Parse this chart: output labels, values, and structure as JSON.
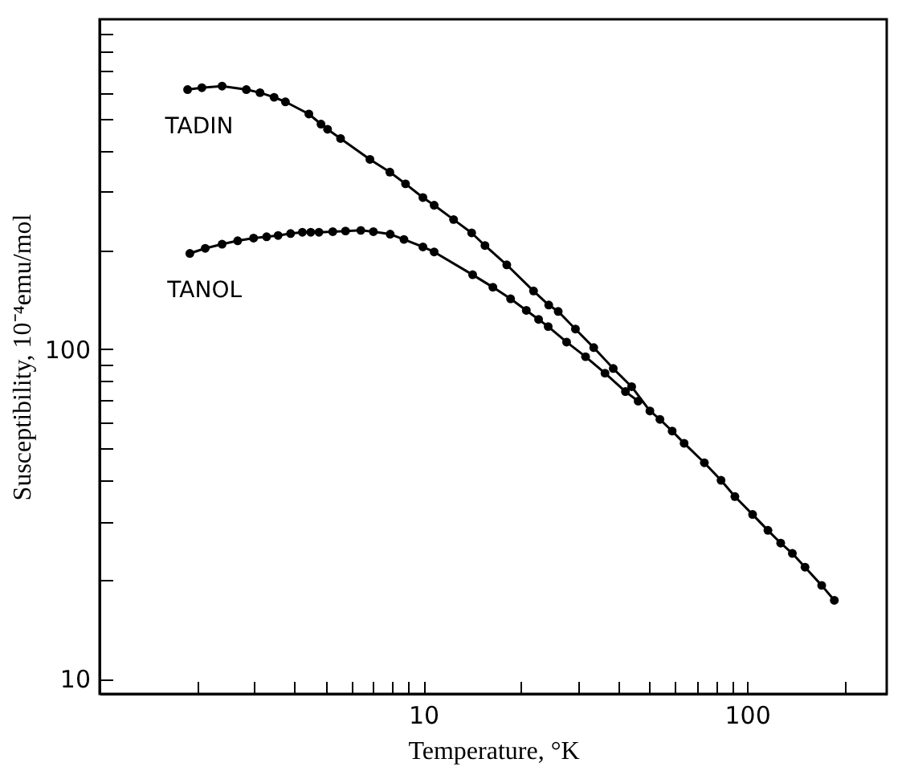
{
  "chart_data": {
    "type": "line",
    "xlabel": "Temperature, °K",
    "ylabel": "Susceptibility, 10⁻⁴emu/mol",
    "log": "xy",
    "grid": false,
    "marker": "circle",
    "line_style": "solid",
    "xlim": [
      1,
      270
    ],
    "xticks": [
      {
        "value": 2,
        "label": null
      },
      {
        "value": 3,
        "label": null
      },
      {
        "value": 4,
        "label": null
      },
      {
        "value": 5,
        "label": null
      },
      {
        "value": 6,
        "label": null
      },
      {
        "value": 7,
        "label": null
      },
      {
        "value": 8,
        "label": null
      },
      {
        "value": 9,
        "label": null
      },
      10,
      {
        "value": 20,
        "label": null
      },
      {
        "value": 30,
        "label": null
      },
      {
        "value": 40,
        "label": null
      },
      {
        "value": 50,
        "label": null
      },
      {
        "value": 60,
        "label": null
      },
      {
        "value": 70,
        "label": null
      },
      {
        "value": 80,
        "label": null
      },
      {
        "value": 90,
        "label": null
      },
      100,
      {
        "value": 200,
        "label": null
      }
    ],
    "ylim": [
      9,
      1000
    ],
    "yticks": [
      10,
      {
        "value": 20,
        "label": null
      },
      {
        "value": 30,
        "label": null
      },
      {
        "value": 40,
        "label": null
      },
      {
        "value": 50,
        "label": null
      },
      {
        "value": 60,
        "label": null
      },
      {
        "value": 70,
        "label": null
      },
      {
        "value": 80,
        "label": null
      },
      {
        "value": 90,
        "label": null
      },
      100,
      {
        "value": 200,
        "label": null
      },
      {
        "value": 300,
        "label": null
      },
      {
        "value": 400,
        "label": null
      },
      {
        "value": 500,
        "label": null
      },
      {
        "value": 600,
        "label": null
      },
      {
        "value": 700,
        "label": null
      },
      {
        "value": 800,
        "label": null
      },
      {
        "value": 900,
        "label": null
      }
    ],
    "series": [
      {
        "name": "TADIN",
        "color": "#000000",
        "x": [
          1.87,
          2.07,
          2.39,
          2.84,
          3.13,
          3.46,
          3.75,
          4.43,
          4.83,
          5.06,
          5.55,
          6.84,
          7.88,
          8.81,
          9.97,
          10.8,
          12.4,
          14.1,
          15.5,
          18.1,
          21.9,
          24.4,
          26.1,
          29.5,
          33.6,
          38.6,
          44.0,
          50.1,
          53.8,
          58.7,
          63.9,
          73.8,
          83.1,
          91.7,
          104,
          116,
          127,
          138,
          151,
          170,
          186
        ],
        "values": [
          612,
          620,
          627,
          612,
          599,
          580,
          562,
          516,
          481,
          464,
          435,
          376,
          344,
          317,
          288,
          273,
          247,
          225,
          206,
          180,
          150,
          136,
          130,
          115,
          101,
          87.3,
          76.9,
          64.9,
          61.2,
          56.4,
          51.8,
          45.2,
          40.0,
          35.7,
          31.5,
          28.2,
          25.8,
          24.0,
          21.8,
          19.2,
          17.3
        ]
      },
      {
        "name": "TANOL",
        "color": "#000000",
        "x": [
          1.9,
          2.12,
          2.39,
          2.67,
          2.99,
          3.28,
          3.56,
          3.89,
          4.23,
          4.49,
          4.76,
          5.25,
          5.75,
          6.41,
          7.01,
          7.9,
          8.71,
          9.97,
          10.8,
          14.2,
          16.4,
          18.6,
          20.8,
          22.7,
          24.3,
          27.7,
          31.7,
          36.4,
          42.1,
          46.1
        ],
        "values": [
          195,
          202,
          208,
          213,
          217,
          219,
          221,
          224,
          226,
          226,
          226,
          227,
          228,
          229,
          227,
          223,
          215,
          204,
          197,
          168,
          154,
          142,
          131,
          123,
          117,
          105,
          94.8,
          84.5,
          74.3,
          69.5
        ]
      }
    ]
  }
}
